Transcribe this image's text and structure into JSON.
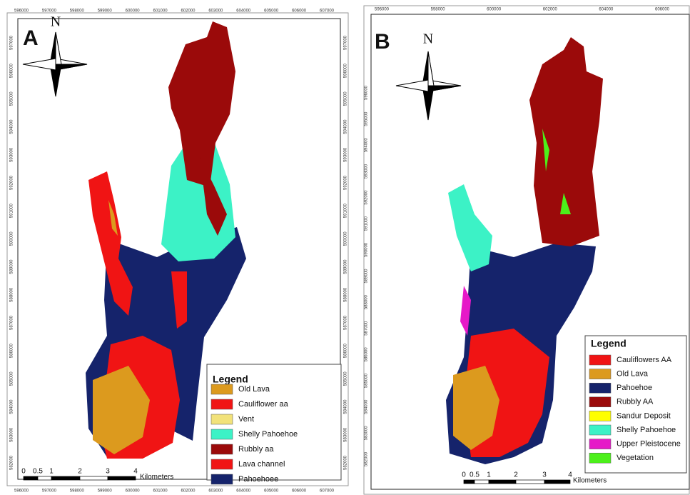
{
  "panels": [
    {
      "label": "A",
      "north": "N",
      "legend": {
        "title": "Legend",
        "items": [
          {
            "label": "Old Lava",
            "color": "#dc9a1e"
          },
          {
            "label": "Cauliflower aa",
            "color": "#f01414"
          },
          {
            "label": "Vent",
            "color": "#f2e27a"
          },
          {
            "label": "Shelly Pahoehoe",
            "color": "#3cf2c6"
          },
          {
            "label": "Rubbly aa",
            "color": "#9b0a0a"
          },
          {
            "label": "Lava channel",
            "color": "#f01414"
          },
          {
            "label": "Pahoehoee",
            "color": "#15236b"
          }
        ]
      },
      "scale": {
        "ticks": [
          "0",
          "0.5",
          "1",
          "2",
          "3",
          "4"
        ],
        "unit": "Kilometers"
      },
      "coords": {
        "top": [
          "596000",
          "597000",
          "598000",
          "599000",
          "600000",
          "601000",
          "602000",
          "603000",
          "604000",
          "605000",
          "606000",
          "607000"
        ],
        "bottom": [
          "596000",
          "597000",
          "598000",
          "599000",
          "600000",
          "601000",
          "602000",
          "603000",
          "604000",
          "605000",
          "606000",
          "607000"
        ],
        "left": [
          "597000",
          "596000",
          "595000",
          "594000",
          "593000",
          "592000",
          "591000",
          "590000",
          "589000",
          "588000",
          "587000",
          "586000",
          "585000",
          "584000",
          "583000",
          "582000"
        ],
        "right": [
          "597000",
          "596000",
          "595000",
          "594000",
          "593000",
          "592000",
          "591000",
          "590000",
          "589000",
          "588000",
          "587000",
          "586000",
          "585000",
          "584000",
          "583000",
          "582000"
        ]
      }
    },
    {
      "label": "B",
      "north": "N",
      "legend": {
        "title": "Legend",
        "items": [
          {
            "label": "Cauliflowers AA",
            "color": "#f01414"
          },
          {
            "label": "Old Lava",
            "color": "#dc9a1e"
          },
          {
            "label": "Pahoehoe",
            "color": "#15236b"
          },
          {
            "label": "Rubbly AA",
            "color": "#9b0a0a"
          },
          {
            "label": "Sandur Deposit",
            "color": "#ffff00"
          },
          {
            "label": "Shelly Pahoehoe",
            "color": "#3cf2c6"
          },
          {
            "label": "Upper Pleistocene",
            "color": "#e619c8"
          },
          {
            "label": "Vegetation",
            "color": "#4cf01a"
          }
        ]
      },
      "scale": {
        "ticks": [
          "0",
          "0.5",
          "1",
          "2",
          "3",
          "4"
        ],
        "unit": "Kilometers"
      },
      "coords": {
        "top": [
          "596000",
          "598000",
          "600000",
          "602000",
          "604000",
          "606000"
        ],
        "left": [
          "596000",
          "595000",
          "594000",
          "593000",
          "592000",
          "591000",
          "590000",
          "589000",
          "588000",
          "587000",
          "586000",
          "585000",
          "584000",
          "583000",
          "582000"
        ]
      }
    }
  ]
}
